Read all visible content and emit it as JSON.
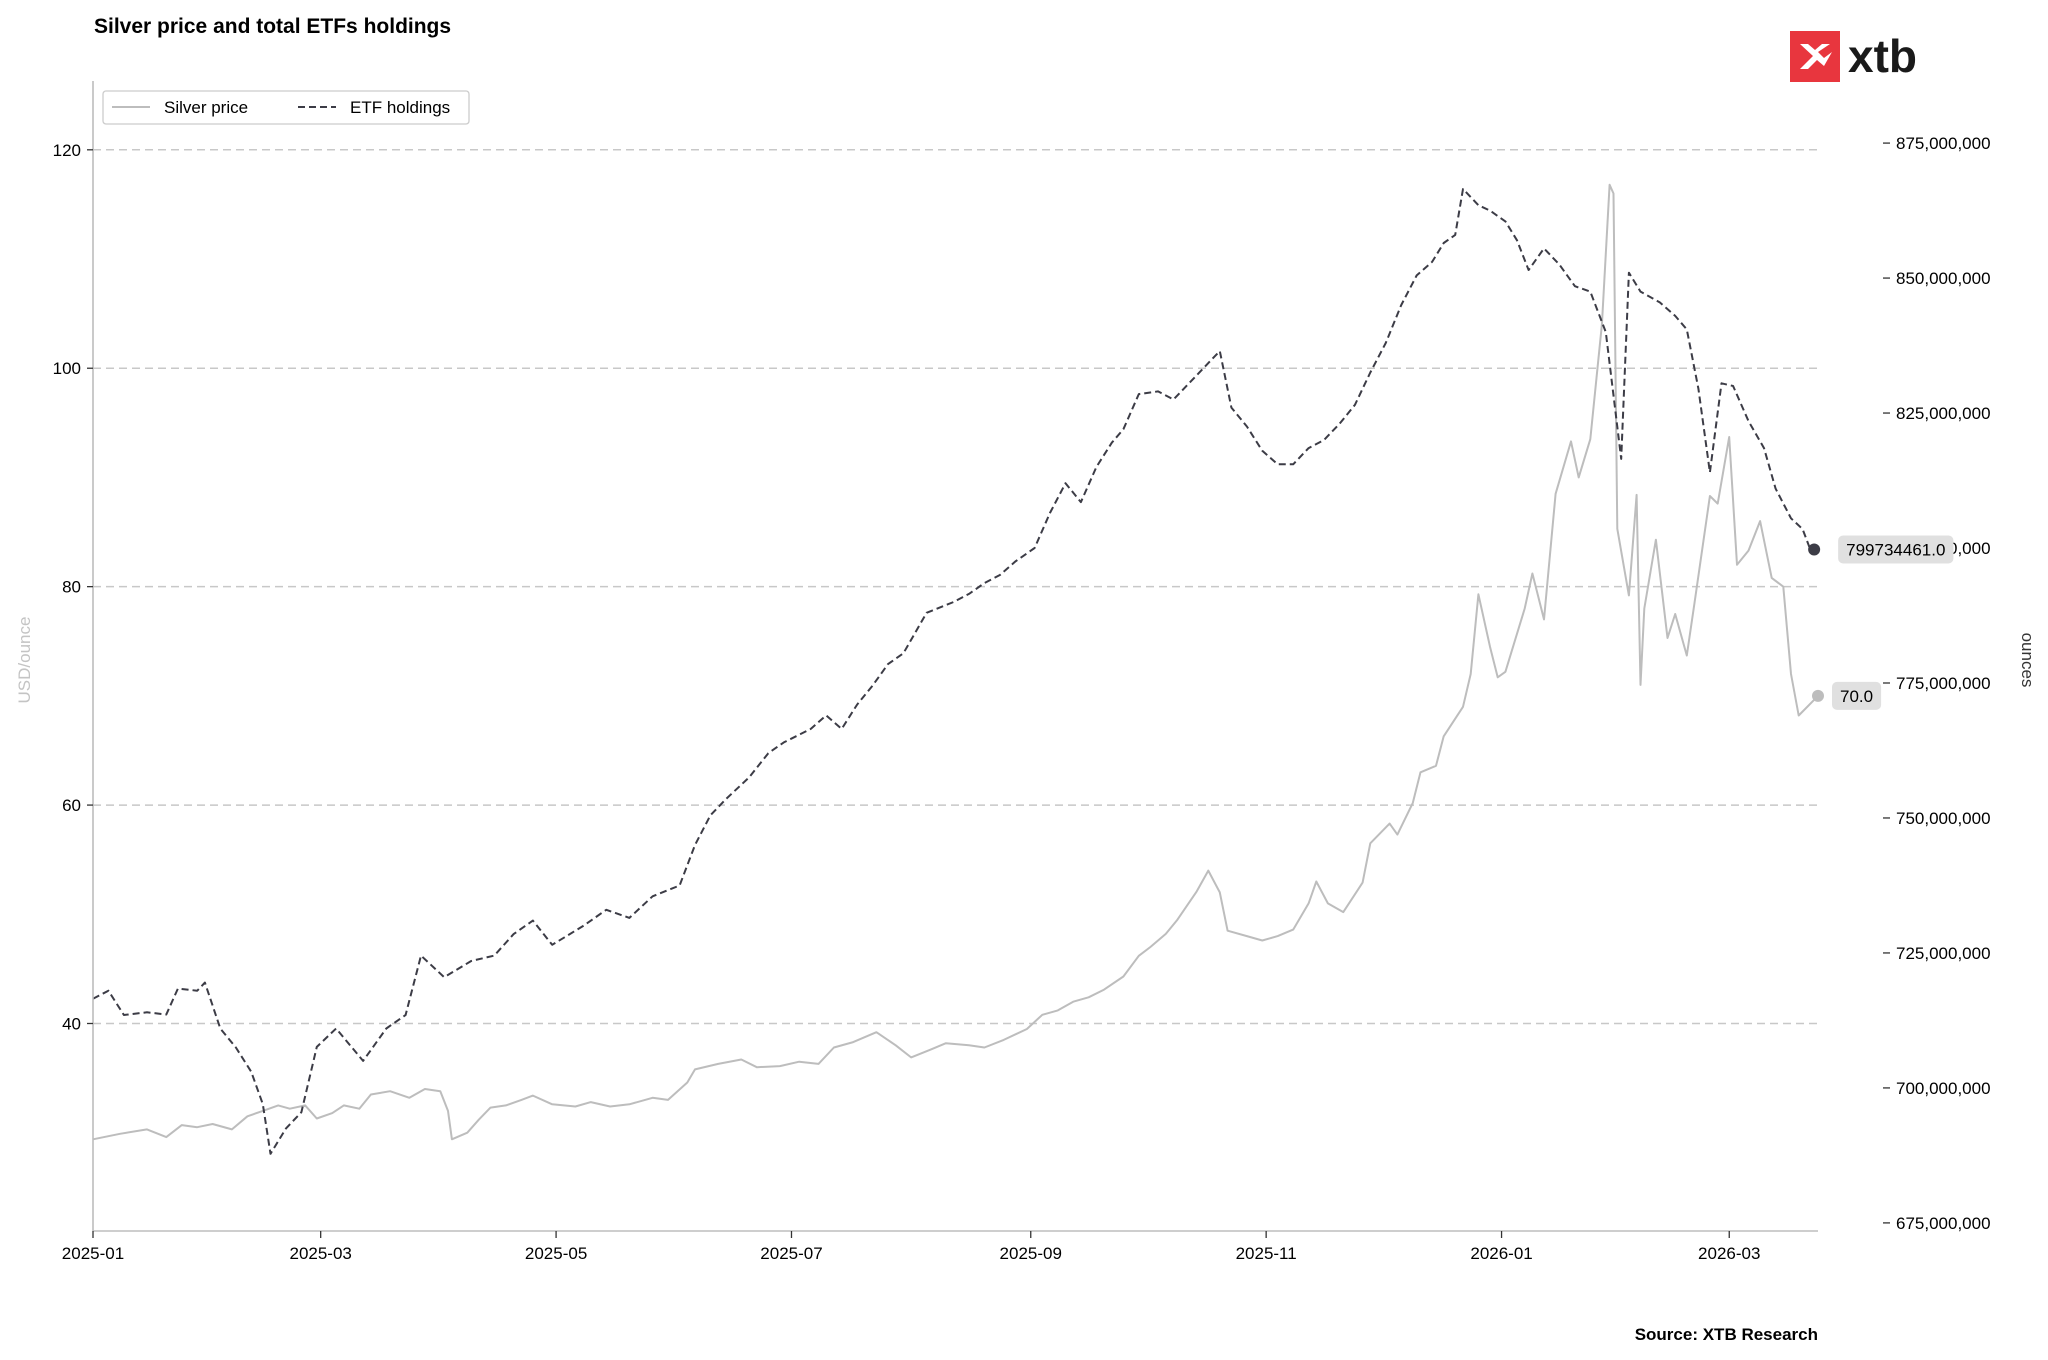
{
  "chart_data": {
    "type": "line",
    "title": "Silver price and total ETFs holdings",
    "x_ticks": [
      "2025-01",
      "2025-03",
      "2025-05",
      "2025-07",
      "2025-09",
      "2025-11",
      "2026-01",
      "2026-03"
    ],
    "xlim": [
      "2025-01-01",
      "2026-03-24"
    ],
    "y_left": {
      "label": "USD/ounce",
      "ticks": [
        "40",
        "60",
        "80",
        "100",
        "120"
      ],
      "ylim": [
        21,
        126.3
      ]
    },
    "y_right": {
      "label": "ounces",
      "ticks": [
        "675,000,000",
        "700,000,000",
        "725,000,000",
        "750,000,000",
        "775,000,000",
        "800,000,000",
        "825,000,000",
        "850,000,000",
        "875,000,000"
      ],
      "ylim": [
        673500000,
        886500000
      ]
    },
    "grid": "horizontal dashed",
    "legend": {
      "placement": "top-left",
      "entries": [
        "Silver price",
        "ETF holdings"
      ]
    },
    "series": [
      {
        "name": "Silver price",
        "axis": "left",
        "color": "#bdbdbd",
        "style": "solid",
        "points": [
          [
            "2025-01-01",
            29.4
          ],
          [
            "2025-01-08",
            29.9
          ],
          [
            "2025-01-15",
            30.3
          ],
          [
            "2025-01-20",
            29.6
          ],
          [
            "2025-01-24",
            30.7
          ],
          [
            "2025-01-28",
            30.5
          ],
          [
            "2025-02-01",
            30.8
          ],
          [
            "2025-02-06",
            30.3
          ],
          [
            "2025-02-10",
            31.5
          ],
          [
            "2025-02-14",
            32.0
          ],
          [
            "2025-02-18",
            32.5
          ],
          [
            "2025-02-21",
            32.2
          ],
          [
            "2025-02-25",
            32.5
          ],
          [
            "2025-02-28",
            31.3
          ],
          [
            "2025-03-04",
            31.8
          ],
          [
            "2025-03-07",
            32.5
          ],
          [
            "2025-03-11",
            32.2
          ],
          [
            "2025-03-14",
            33.5
          ],
          [
            "2025-03-19",
            33.8
          ],
          [
            "2025-03-24",
            33.2
          ],
          [
            "2025-03-28",
            34.0
          ],
          [
            "2025-04-01",
            33.8
          ],
          [
            "2025-04-03",
            32.0
          ],
          [
            "2025-04-04",
            29.4
          ],
          [
            "2025-04-08",
            30.0
          ],
          [
            "2025-04-11",
            31.2
          ],
          [
            "2025-04-14",
            32.3
          ],
          [
            "2025-04-18",
            32.5
          ],
          [
            "2025-04-22",
            33.0
          ],
          [
            "2025-04-25",
            33.4
          ],
          [
            "2025-04-30",
            32.6
          ],
          [
            "2025-05-06",
            32.4
          ],
          [
            "2025-05-10",
            32.8
          ],
          [
            "2025-05-15",
            32.4
          ],
          [
            "2025-05-20",
            32.6
          ],
          [
            "2025-05-26",
            33.2
          ],
          [
            "2025-05-30",
            33.0
          ],
          [
            "2025-06-04",
            34.6
          ],
          [
            "2025-06-06",
            35.8
          ],
          [
            "2025-06-12",
            36.3
          ],
          [
            "2025-06-18",
            36.7
          ],
          [
            "2025-06-22",
            36.0
          ],
          [
            "2025-06-28",
            36.1
          ],
          [
            "2025-07-03",
            36.5
          ],
          [
            "2025-07-08",
            36.3
          ],
          [
            "2025-07-12",
            37.8
          ],
          [
            "2025-07-17",
            38.3
          ],
          [
            "2025-07-23",
            39.2
          ],
          [
            "2025-07-28",
            38.0
          ],
          [
            "2025-08-01",
            36.9
          ],
          [
            "2025-08-06",
            37.6
          ],
          [
            "2025-08-10",
            38.2
          ],
          [
            "2025-08-16",
            38.0
          ],
          [
            "2025-08-20",
            37.8
          ],
          [
            "2025-08-25",
            38.5
          ],
          [
            "2025-08-31",
            39.5
          ],
          [
            "2025-09-04",
            40.8
          ],
          [
            "2025-09-08",
            41.2
          ],
          [
            "2025-09-12",
            42.0
          ],
          [
            "2025-09-16",
            42.4
          ],
          [
            "2025-09-20",
            43.1
          ],
          [
            "2025-09-25",
            44.3
          ],
          [
            "2025-09-29",
            46.2
          ],
          [
            "2025-10-02",
            47.0
          ],
          [
            "2025-10-06",
            48.2
          ],
          [
            "2025-10-09",
            49.5
          ],
          [
            "2025-10-14",
            52.1
          ],
          [
            "2025-10-17",
            54.0
          ],
          [
            "2025-10-20",
            52.0
          ],
          [
            "2025-10-22",
            48.5
          ],
          [
            "2025-10-27",
            48.0
          ],
          [
            "2025-10-31",
            47.6
          ],
          [
            "2025-11-04",
            48.0
          ],
          [
            "2025-11-08",
            48.6
          ],
          [
            "2025-11-12",
            51.0
          ],
          [
            "2025-11-14",
            53.0
          ],
          [
            "2025-11-17",
            51.0
          ],
          [
            "2025-11-21",
            50.2
          ],
          [
            "2025-11-26",
            52.9
          ],
          [
            "2025-11-28",
            56.5
          ],
          [
            "2025-12-03",
            58.3
          ],
          [
            "2025-12-05",
            57.3
          ],
          [
            "2025-12-09",
            60.2
          ],
          [
            "2025-12-11",
            63.0
          ],
          [
            "2025-12-15",
            63.6
          ],
          [
            "2025-12-17",
            66.3
          ],
          [
            "2025-12-22",
            69.0
          ],
          [
            "2025-12-24",
            72.0
          ],
          [
            "2025-12-26",
            79.3
          ],
          [
            "2025-12-29",
            74.5
          ],
          [
            "2025-12-31",
            71.7
          ],
          [
            "2026-01-02",
            72.2
          ],
          [
            "2026-01-07",
            78.0
          ],
          [
            "2026-01-09",
            81.2
          ],
          [
            "2026-01-12",
            77.0
          ],
          [
            "2026-01-15",
            88.5
          ],
          [
            "2026-01-19",
            93.3
          ],
          [
            "2026-01-21",
            90.0
          ],
          [
            "2026-01-24",
            93.5
          ],
          [
            "2026-01-27",
            104.0
          ],
          [
            "2026-01-29",
            116.8
          ],
          [
            "2026-01-30",
            116.0
          ],
          [
            "2026-01-31",
            85.3
          ],
          [
            "2026-02-03",
            79.2
          ],
          [
            "2026-02-05",
            88.4
          ],
          [
            "2026-02-06",
            71.0
          ],
          [
            "2026-02-07",
            78.0
          ],
          [
            "2026-02-10",
            84.3
          ],
          [
            "2026-02-13",
            75.3
          ],
          [
            "2026-02-15",
            77.5
          ],
          [
            "2026-02-18",
            73.7
          ],
          [
            "2026-02-20",
            78.5
          ],
          [
            "2026-02-24",
            88.3
          ],
          [
            "2026-02-26",
            87.6
          ],
          [
            "2026-03-01",
            93.7
          ],
          [
            "2026-03-03",
            82.0
          ],
          [
            "2026-03-06",
            83.3
          ],
          [
            "2026-03-09",
            86.0
          ],
          [
            "2026-03-12",
            80.8
          ],
          [
            "2026-03-15",
            80.0
          ],
          [
            "2026-03-17",
            72.0
          ],
          [
            "2026-03-19",
            68.2
          ],
          [
            "2026-03-24",
            70.0
          ]
        ]
      },
      {
        "name": "ETF holdings",
        "axis": "right",
        "color": "#3c3c46",
        "style": "dashed",
        "points": [
          [
            "2025-01-01",
            716500000
          ],
          [
            "2025-01-05",
            718000000
          ],
          [
            "2025-01-09",
            713500000
          ],
          [
            "2025-01-15",
            714000000
          ],
          [
            "2025-01-20",
            713600000
          ],
          [
            "2025-01-23",
            718400000
          ],
          [
            "2025-01-28",
            718000000
          ],
          [
            "2025-01-30",
            719500000
          ],
          [
            "2025-02-03",
            711000000
          ],
          [
            "2025-02-07",
            707500000
          ],
          [
            "2025-02-11",
            703000000
          ],
          [
            "2025-02-14",
            697000000
          ],
          [
            "2025-02-16",
            687800000
          ],
          [
            "2025-02-20",
            692500000
          ],
          [
            "2025-02-24",
            695500000
          ],
          [
            "2025-02-28",
            707600000
          ],
          [
            "2025-03-05",
            711000000
          ],
          [
            "2025-03-12",
            705000000
          ],
          [
            "2025-03-18",
            711000000
          ],
          [
            "2025-03-23",
            713500000
          ],
          [
            "2025-03-27",
            724500000
          ],
          [
            "2025-04-02",
            720500000
          ],
          [
            "2025-04-09",
            723500000
          ],
          [
            "2025-04-15",
            724500000
          ],
          [
            "2025-04-20",
            728500000
          ],
          [
            "2025-04-25",
            731000000
          ],
          [
            "2025-04-30",
            726500000
          ],
          [
            "2025-05-08",
            730000000
          ],
          [
            "2025-05-14",
            733000000
          ],
          [
            "2025-05-20",
            731500000
          ],
          [
            "2025-05-26",
            735500000
          ],
          [
            "2025-06-02",
            737500000
          ],
          [
            "2025-06-06",
            745000000
          ],
          [
            "2025-06-10",
            750500000
          ],
          [
            "2025-06-14",
            753500000
          ],
          [
            "2025-06-20",
            757500000
          ],
          [
            "2025-06-25",
            762000000
          ],
          [
            "2025-06-29",
            764000000
          ],
          [
            "2025-07-06",
            766500000
          ],
          [
            "2025-07-10",
            769000000
          ],
          [
            "2025-07-14",
            766500000
          ],
          [
            "2025-07-18",
            771000000
          ],
          [
            "2025-07-22",
            774500000
          ],
          [
            "2025-07-26",
            778500000
          ],
          [
            "2025-07-30",
            780500000
          ],
          [
            "2025-08-05",
            788000000
          ],
          [
            "2025-08-12",
            790000000
          ],
          [
            "2025-08-16",
            791500000
          ],
          [
            "2025-08-20",
            793500000
          ],
          [
            "2025-08-24",
            795000000
          ],
          [
            "2025-08-28",
            797500000
          ],
          [
            "2025-09-02",
            800000000
          ],
          [
            "2025-09-06",
            806500000
          ],
          [
            "2025-09-10",
            812000000
          ],
          [
            "2025-09-14",
            808500000
          ],
          [
            "2025-09-18",
            815000000
          ],
          [
            "2025-09-22",
            819500000
          ],
          [
            "2025-09-25",
            822000000
          ],
          [
            "2025-09-29",
            828500000
          ],
          [
            "2025-10-04",
            829000000
          ],
          [
            "2025-10-08",
            827500000
          ],
          [
            "2025-10-12",
            830500000
          ],
          [
            "2025-10-16",
            833500000
          ],
          [
            "2025-10-20",
            836500000
          ],
          [
            "2025-10-23",
            826000000
          ],
          [
            "2025-10-27",
            822500000
          ],
          [
            "2025-10-31",
            818000000
          ],
          [
            "2025-11-04",
            815500000
          ],
          [
            "2025-11-08",
            815500000
          ],
          [
            "2025-11-12",
            818500000
          ],
          [
            "2025-11-16",
            820000000
          ],
          [
            "2025-11-20",
            823000000
          ],
          [
            "2025-11-24",
            826500000
          ],
          [
            "2025-11-28",
            832500000
          ],
          [
            "2025-12-02",
            838000000
          ],
          [
            "2025-12-06",
            845000000
          ],
          [
            "2025-12-10",
            850500000
          ],
          [
            "2025-12-14",
            853000000
          ],
          [
            "2025-12-17",
            856500000
          ],
          [
            "2025-12-20",
            858000000
          ],
          [
            "2025-12-22",
            866500000
          ],
          [
            "2025-12-26",
            863500000
          ],
          [
            "2025-12-29",
            862500000
          ],
          [
            "2026-01-02",
            860500000
          ],
          [
            "2026-01-05",
            857000000
          ],
          [
            "2026-01-08",
            851500000
          ],
          [
            "2026-01-12",
            855500000
          ],
          [
            "2026-01-16",
            852500000
          ],
          [
            "2026-01-20",
            848500000
          ],
          [
            "2026-01-24",
            847500000
          ],
          [
            "2026-01-28",
            840000000
          ],
          [
            "2026-02-01",
            816500000
          ],
          [
            "2026-02-03",
            851000000
          ],
          [
            "2026-02-06",
            847500000
          ],
          [
            "2026-02-11",
            845500000
          ],
          [
            "2026-02-15",
            843000000
          ],
          [
            "2026-02-18",
            840500000
          ],
          [
            "2026-02-21",
            829500000
          ],
          [
            "2026-02-24",
            814000000
          ],
          [
            "2026-02-27",
            830500000
          ],
          [
            "2026-03-02",
            830000000
          ],
          [
            "2026-03-06",
            823500000
          ],
          [
            "2026-03-10",
            818500000
          ],
          [
            "2026-03-13",
            811000000
          ],
          [
            "2026-03-17",
            805500000
          ],
          [
            "2026-03-20",
            803500000
          ],
          [
            "2026-03-22",
            799734461
          ]
        ]
      }
    ],
    "last_labels": [
      {
        "series": "ETF holdings",
        "date": "2026-03-23",
        "value": 799734461,
        "text": "799734461.0"
      },
      {
        "series": "Silver price",
        "date": "2026-03-24",
        "value": 70.0,
        "text": "70.0"
      }
    ],
    "source": "Source: XTB Research"
  },
  "brand": {
    "name": "xtb",
    "color": "#e8363e"
  }
}
